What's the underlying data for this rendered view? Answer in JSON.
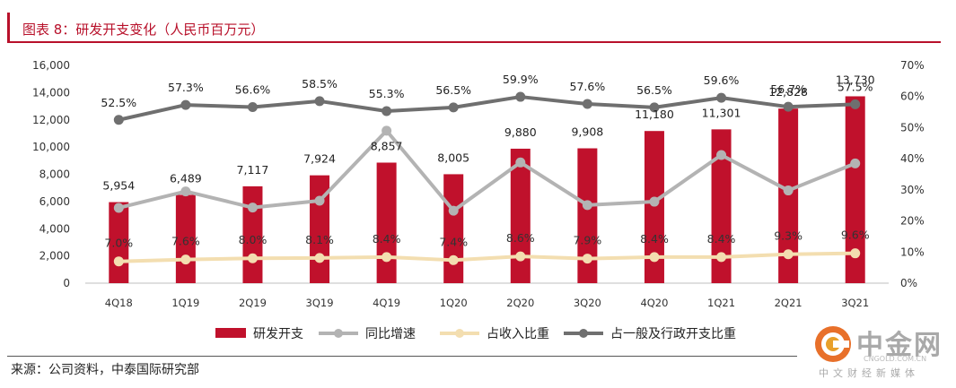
{
  "header": {
    "title": "图表 8：研发开支变化（人民币百万元）"
  },
  "footer": {
    "source": "来源：公司资料，中泰国际研究部"
  },
  "watermark": {
    "name": "中金网",
    "url": "CNGOLD.COM.CN",
    "tagline": "中文财经新媒体"
  },
  "colors": {
    "bar": "#c0112c",
    "yoy": "#b3b3b3",
    "ratio_rev": "#f3deb0",
    "ratio_admin": "#6f6f6f"
  },
  "chart_data": {
    "type": "bar",
    "categories": [
      "4Q18",
      "1Q19",
      "2Q19",
      "3Q19",
      "4Q19",
      "1Q20",
      "2Q20",
      "3Q20",
      "4Q20",
      "1Q21",
      "2Q21",
      "3Q21"
    ],
    "series": [
      {
        "name": "研发开支",
        "type": "bar",
        "axis": "left",
        "values": [
          5954,
          6489,
          7117,
          7924,
          8857,
          8005,
          9880,
          9908,
          11180,
          11301,
          12828,
          13730
        ],
        "labels": [
          "5,954",
          "6,489",
          "7,117",
          "7,924",
          "8,857",
          "8,005",
          "9,880",
          "9,908",
          "11,180",
          "11,301",
          "12,828",
          "13,730"
        ]
      },
      {
        "name": "同比增速",
        "type": "line",
        "axis": "right",
        "values": [
          24.2,
          29.5,
          24.3,
          26.5,
          49.0,
          23.3,
          38.8,
          25.1,
          26.2,
          41.2,
          29.8,
          38.5
        ]
      },
      {
        "name": "占收入比重",
        "type": "line",
        "axis": "right",
        "values": [
          7.0,
          7.6,
          8.0,
          8.1,
          8.4,
          7.4,
          8.6,
          7.9,
          8.4,
          8.4,
          9.3,
          9.6
        ],
        "labels": [
          "7.0%",
          "7.6%",
          "8.0%",
          "8.1%",
          "8.4%",
          "7.4%",
          "8.6%",
          "7.9%",
          "8.4%",
          "8.4%",
          "9.3%",
          "9.6%"
        ]
      },
      {
        "name": "占一般及行政开支比重",
        "type": "line",
        "axis": "right",
        "values": [
          52.5,
          57.3,
          56.6,
          58.5,
          55.3,
          56.5,
          59.9,
          57.6,
          56.5,
          59.6,
          56.7,
          57.5
        ],
        "labels": [
          "52.5%",
          "57.3%",
          "56.6%",
          "58.5%",
          "55.3%",
          "56.5%",
          "59.9%",
          "57.6%",
          "56.5%",
          "59.6%",
          "56.7%",
          "57.5%"
        ]
      }
    ],
    "y_left": {
      "min": 0,
      "max": 16000,
      "ticks": [
        "0",
        "2,000",
        "4,000",
        "6,000",
        "8,000",
        "10,000",
        "12,000",
        "14,000",
        "16,000"
      ]
    },
    "y_right": {
      "min": 0,
      "max": 70,
      "ticks": [
        "0%",
        "10%",
        "20%",
        "30%",
        "40%",
        "50%",
        "60%",
        "70%"
      ]
    },
    "legend_position": "bottom",
    "grid": false
  }
}
